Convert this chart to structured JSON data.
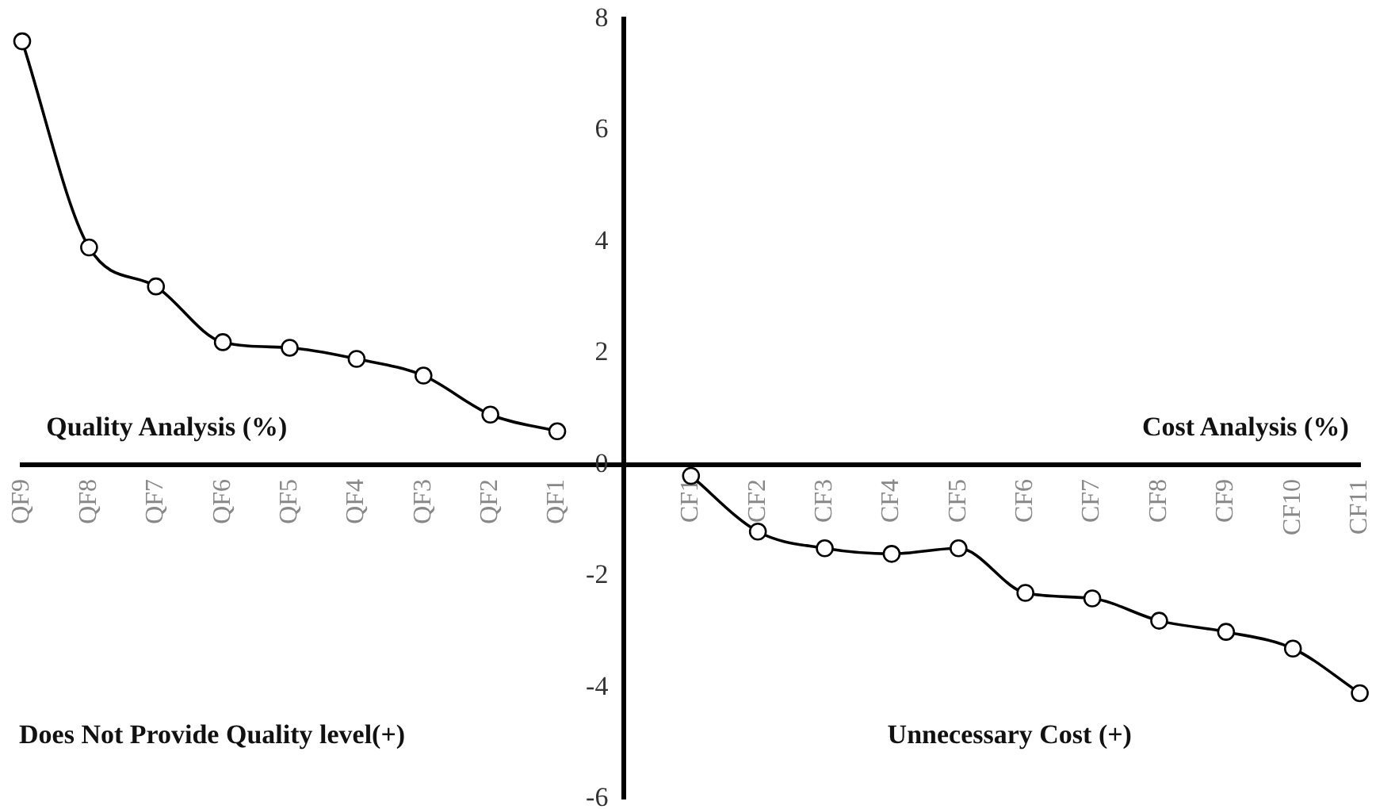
{
  "chart_data": {
    "type": "line",
    "categories": [
      "QF9",
      "QF8",
      "QF7",
      "QF6",
      "QF5",
      "QF4",
      "QF3",
      "QF2",
      "QF1",
      null,
      "CF1",
      "CF2",
      "CF3",
      "CF4",
      "CF5",
      "CF6",
      "CF7",
      "CF8",
      "CF9",
      "CF10",
      "CF11"
    ],
    "series": [
      {
        "color": "#000000",
        "values": [
          7.6,
          3.9,
          3.2,
          2.2,
          2.1,
          1.9,
          1.6,
          0.9,
          0.6,
          null,
          null,
          null,
          null,
          null,
          null,
          null,
          null,
          null,
          null,
          null,
          null
        ]
      },
      {
        "color": "#000000",
        "values": [
          null,
          null,
          null,
          null,
          null,
          null,
          null,
          null,
          null,
          null,
          -0.2,
          -1.2,
          -1.5,
          -1.6,
          -1.5,
          -2.3,
          -2.4,
          -2.8,
          -3.0,
          -3.3,
          -4.1
        ]
      }
    ],
    "ylim": [
      -6,
      8
    ],
    "yticks": [
      -6,
      -4,
      -2,
      0,
      2,
      4,
      6,
      8
    ],
    "grid": false,
    "legend": false,
    "marker": "circle",
    "line_style": "solid",
    "annotations": [
      "Quality Analysis (%)",
      "Cost Analysis (%)",
      "Does Not Provide Quality level(+)",
      "Unnecessary Cost (+)"
    ]
  }
}
